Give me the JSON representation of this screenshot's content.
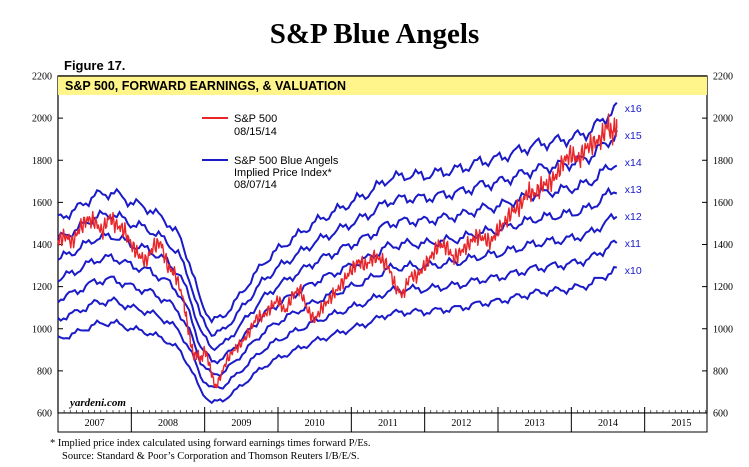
{
  "page": {
    "title": "S&P Blue Angels",
    "figure_label": "Figure 17.",
    "footnotes": [
      "*  Implied price index calculated using forward earnings times forward P/Es.",
      "Source: Standard & Poor’s Corporation and Thomson Reuters I/B/E/S."
    ]
  },
  "chart_data": {
    "type": "line",
    "title": "S&P 500, FORWARD EARNINGS, & VALUATION",
    "watermark": "yardeni.com",
    "xlim": [
      2007.0,
      2015.85
    ],
    "ylim": [
      600,
      2200
    ],
    "y_ticks": [
      600,
      800,
      1000,
      1200,
      1400,
      1600,
      1800,
      2000,
      2200
    ],
    "x_tick_labels": [
      "2007",
      "2008",
      "2009",
      "2010",
      "2011",
      "2012",
      "2013",
      "2014",
      "2015"
    ],
    "legend": [
      {
        "label": "S&P 500",
        "date": "08/15/14",
        "color": "#e8262a"
      },
      {
        "label": "S&P 500 Blue Angels",
        "label2": "Implied Price Index*",
        "date": "08/07/14",
        "color": "#1a1ac8"
      }
    ],
    "colors": {
      "sp500": "#e8262a",
      "angels": "#1a1ac8"
    },
    "multiples": [
      "x10",
      "x11",
      "x12",
      "x13",
      "x14",
      "x15",
      "x16"
    ],
    "multiple_values": [
      10,
      11,
      12,
      13,
      14,
      15,
      16
    ],
    "forward_earnings": {
      "x": [
        2007.0,
        2007.25,
        2007.5,
        2007.75,
        2008.0,
        2008.25,
        2008.5,
        2008.65,
        2008.8,
        2008.95,
        2009.1,
        2009.25,
        2009.4,
        2009.6,
        2009.8,
        2010.0,
        2010.25,
        2010.5,
        2010.75,
        2011.0,
        2011.25,
        2011.5,
        2011.75,
        2012.0,
        2012.25,
        2012.5,
        2012.75,
        2013.0,
        2013.25,
        2013.5,
        2013.75,
        2014.0,
        2014.25,
        2014.5,
        2014.62
      ],
      "values": [
        95,
        98,
        102,
        103,
        100,
        98,
        94,
        90,
        82,
        70,
        65,
        66,
        70,
        76,
        82,
        86,
        90,
        94,
        97,
        100,
        103,
        107,
        108,
        108,
        109,
        110,
        112,
        113,
        115,
        117,
        118,
        119,
        121,
        126,
        128
      ]
    },
    "sp500": {
      "x": [
        2007.0,
        2007.1,
        2007.2,
        2007.3,
        2007.4,
        2007.5,
        2007.6,
        2007.7,
        2007.8,
        2007.9,
        2008.0,
        2008.1,
        2008.2,
        2008.3,
        2008.4,
        2008.5,
        2008.6,
        2008.7,
        2008.75,
        2008.8,
        2008.85,
        2008.9,
        2008.95,
        2009.0,
        2009.05,
        2009.1,
        2009.15,
        2009.2,
        2009.3,
        2009.4,
        2009.5,
        2009.6,
        2009.7,
        2009.8,
        2009.9,
        2010.0,
        2010.1,
        2010.2,
        2010.3,
        2010.4,
        2010.5,
        2010.6,
        2010.7,
        2010.8,
        2010.9,
        2011.0,
        2011.1,
        2011.2,
        2011.3,
        2011.4,
        2011.5,
        2011.6,
        2011.7,
        2011.8,
        2011.9,
        2012.0,
        2012.1,
        2012.2,
        2012.3,
        2012.4,
        2012.5,
        2012.6,
        2012.7,
        2012.8,
        2012.9,
        2013.0,
        2013.1,
        2013.2,
        2013.3,
        2013.4,
        2013.5,
        2013.6,
        2013.7,
        2013.8,
        2013.9,
        2014.0,
        2014.1,
        2014.2,
        2014.3,
        2014.4,
        2014.5,
        2014.55,
        2014.6,
        2014.62
      ],
      "values": [
        1420,
        1440,
        1410,
        1480,
        1520,
        1510,
        1460,
        1530,
        1490,
        1470,
        1400,
        1350,
        1320,
        1390,
        1410,
        1290,
        1260,
        1150,
        1050,
        950,
        870,
        880,
        850,
        900,
        850,
        780,
        720,
        760,
        850,
        900,
        930,
        980,
        1050,
        1060,
        1100,
        1140,
        1080,
        1160,
        1190,
        1090,
        1040,
        1100,
        1140,
        1180,
        1230,
        1280,
        1320,
        1300,
        1340,
        1330,
        1300,
        1200,
        1160,
        1250,
        1250,
        1300,
        1350,
        1400,
        1390,
        1330,
        1370,
        1400,
        1440,
        1430,
        1410,
        1470,
        1510,
        1560,
        1580,
        1650,
        1640,
        1680,
        1690,
        1730,
        1800,
        1830,
        1800,
        1860,
        1880,
        1900,
        1970,
        1920,
        1960,
        1950
      ]
    }
  }
}
